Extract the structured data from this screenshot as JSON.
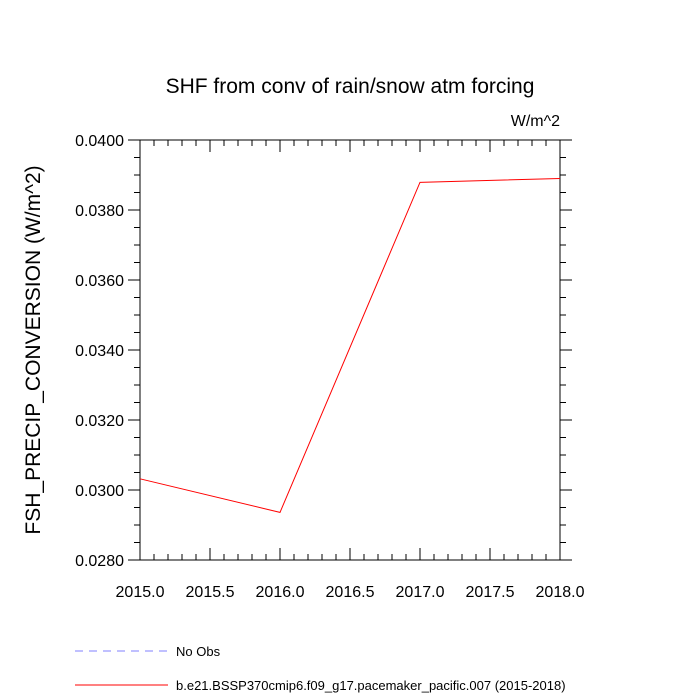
{
  "chart_data": {
    "type": "line",
    "title": "SHF from conv of rain/snow atm forcing",
    "units_label": "W/m^2",
    "ylabel": "FSH_PRECIP_CONVERSION  (W/m^2)",
    "xlabel": "",
    "xlim": [
      2015.0,
      2018.0
    ],
    "ylim": [
      0.028,
      0.04
    ],
    "x_ticks": [
      "2015.0",
      "2015.5",
      "2016.0",
      "2016.5",
      "2017.0",
      "2017.5",
      "2018.0"
    ],
    "y_ticks": [
      "0.0280",
      "0.0300",
      "0.0320",
      "0.0340",
      "0.0360",
      "0.0380",
      "0.0400"
    ],
    "grid": false,
    "legend_position": "bottom-left",
    "series": [
      {
        "name": "b.e21.BSSP370cmip6.f09_g17.pacemaker_pacific.007 (2015-2018)",
        "color": "#ff0000",
        "dash": "solid",
        "x": [
          2015.0,
          2016.0,
          2017.0,
          2018.0
        ],
        "y": [
          0.03032,
          0.02936,
          0.03879,
          0.0389
        ]
      },
      {
        "name": "No Obs",
        "color": "#8080ff",
        "dash": "dashed",
        "x": [],
        "y": []
      }
    ]
  }
}
